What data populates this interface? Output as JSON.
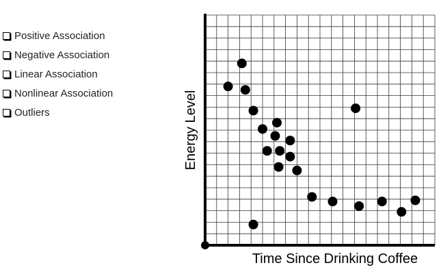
{
  "checklist": [
    "Positive Association",
    "Negative Association",
    "Linear Association",
    "Nonlinear Association",
    "Outliers"
  ],
  "chart_data": {
    "type": "scatter",
    "xlabel": "Time Since Drinking Coffee",
    "ylabel": "Energy Level",
    "x": [
      2.0,
      3.2,
      3.5,
      4.2,
      5.0,
      6.25,
      6.1,
      5.4,
      6.5,
      7.4,
      7.4,
      6.4,
      8.0,
      9.3,
      11.1,
      13.1,
      13.4,
      15.4,
      17.1,
      18.3,
      4.2
    ],
    "y": [
      13.8,
      15.8,
      13.5,
      11.7,
      10.1,
      10.65,
      9.5,
      8.2,
      8.2,
      9.1,
      7.7,
      6.8,
      6.5,
      4.2,
      3.8,
      11.9,
      3.4,
      3.8,
      2.9,
      3.9,
      1.8
    ],
    "xlim": [
      0,
      20
    ],
    "ylim": [
      0,
      20
    ],
    "xticks": [
      0,
      1,
      2,
      3,
      4,
      5,
      6,
      7,
      8,
      9,
      10,
      11,
      12,
      13,
      14,
      15,
      16,
      17,
      18,
      19,
      20
    ],
    "yticks": [
      0,
      1,
      2,
      3,
      4,
      5,
      6,
      7,
      8,
      9,
      10,
      11,
      12,
      13,
      14,
      15,
      16,
      17,
      18,
      19,
      20
    ],
    "grid": true,
    "color": "#000000"
  }
}
